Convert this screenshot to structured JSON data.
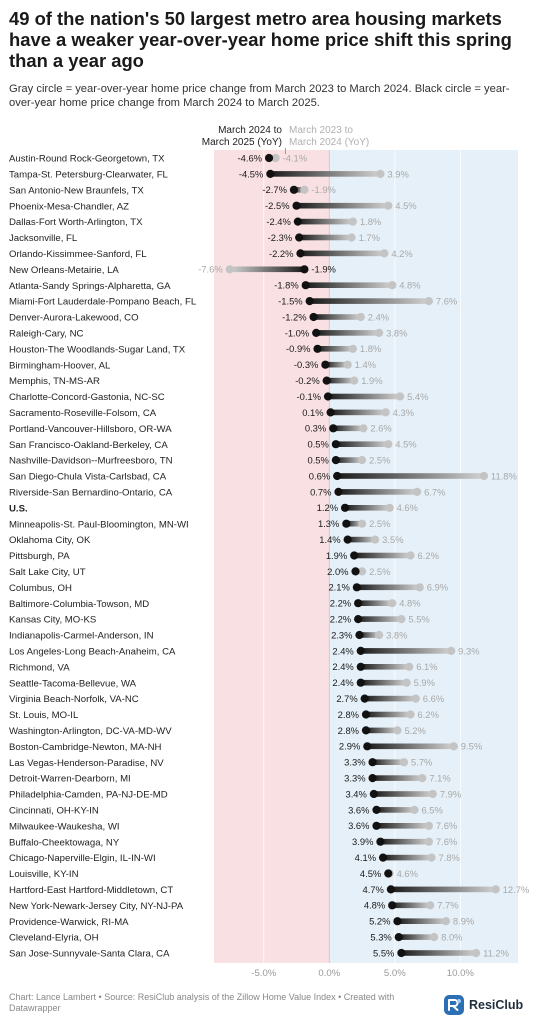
{
  "header": {
    "title": "49 of the nation's 50 largest metro area housing markets have a weaker year-over-year home price shift this spring than a year ago",
    "subtitle": "Gray circle = year-over-year home price change from March 2023 to March 2024. Black circle = year-over-year home price change from March 2024 to March 2025."
  },
  "footer": {
    "source": "Chart: Lance Lambert • Source: ResiClub analysis of the Zillow Home Value Index • Created with Datawrapper",
    "brand": "ResiClub",
    "logo_icon": "resiclub-logo-icon"
  },
  "chart_data": {
    "type": "dot-range",
    "legend": {
      "black_line1": "March 2024 to",
      "black_line2": "March 2025 (YoY)",
      "gray_line1": "March 2023 to",
      "gray_line2": "March 2024 (YoY)"
    },
    "x_ticks": [
      -5,
      0,
      5,
      10
    ],
    "x_tick_labels": [
      "-5.0%",
      "0.0%",
      "5.0%",
      "10.0%"
    ],
    "xlim": [
      -8.8,
      14.4
    ],
    "colors": {
      "negative_bg": "#f8e0e3",
      "positive_bg": "#e5f0f8",
      "black_dot": "#111111",
      "gray_dot": "#c4c4c4",
      "gray_label": "#a8a8a8"
    },
    "series": [
      {
        "name": "March 2024 to March 2025 (YoY)",
        "color": "#111111"
      },
      {
        "name": "March 2023 to March 2024 (YoY)",
        "color": "#c4c4c4"
      }
    ],
    "rows": [
      {
        "label": "Austin-Round Rock-Georgetown, TX",
        "black": -4.6,
        "gray": -4.1,
        "black_label": "-4.6%",
        "gray_label": "-4.1%"
      },
      {
        "label": "Tampa-St. Petersburg-Clearwater, FL",
        "black": -4.5,
        "gray": 3.9,
        "black_label": "-4.5%",
        "gray_label": "3.9%"
      },
      {
        "label": "San Antonio-New Braunfels, TX",
        "black": -2.7,
        "gray": -1.9,
        "black_label": "-2.7%",
        "gray_label": "-1.9%"
      },
      {
        "label": "Phoenix-Mesa-Chandler, AZ",
        "black": -2.5,
        "gray": 4.5,
        "black_label": "-2.5%",
        "gray_label": "4.5%"
      },
      {
        "label": "Dallas-Fort Worth-Arlington, TX",
        "black": -2.4,
        "gray": 1.8,
        "black_label": "-2.4%",
        "gray_label": "1.8%"
      },
      {
        "label": "Jacksonville, FL",
        "black": -2.3,
        "gray": 1.7,
        "black_label": "-2.3%",
        "gray_label": "1.7%"
      },
      {
        "label": "Orlando-Kissimmee-Sanford, FL",
        "black": -2.2,
        "gray": 4.2,
        "black_label": "-2.2%",
        "gray_label": "4.2%"
      },
      {
        "label": "New Orleans-Metairie, LA",
        "black": -1.9,
        "gray": -7.6,
        "black_label": "-1.9%",
        "gray_label": "-7.6%"
      },
      {
        "label": "Atlanta-Sandy Springs-Alpharetta, GA",
        "black": -1.8,
        "gray": 4.8,
        "black_label": "-1.8%",
        "gray_label": "4.8%"
      },
      {
        "label": "Miami-Fort Lauderdale-Pompano Beach, FL",
        "black": -1.5,
        "gray": 7.6,
        "black_label": "-1.5%",
        "gray_label": "7.6%"
      },
      {
        "label": "Denver-Aurora-Lakewood, CO",
        "black": -1.2,
        "gray": 2.4,
        "black_label": "-1.2%",
        "gray_label": "2.4%"
      },
      {
        "label": "Raleigh-Cary, NC",
        "black": -1.0,
        "gray": 3.8,
        "black_label": "-1.0%",
        "gray_label": "3.8%"
      },
      {
        "label": "Houston-The Woodlands-Sugar Land, TX",
        "black": -0.9,
        "gray": 1.8,
        "black_label": "-0.9%",
        "gray_label": "1.8%"
      },
      {
        "label": "Birmingham-Hoover, AL",
        "black": -0.3,
        "gray": 1.4,
        "black_label": "-0.3%",
        "gray_label": "1.4%"
      },
      {
        "label": "Memphis, TN-MS-AR",
        "black": -0.2,
        "gray": 1.9,
        "black_label": "-0.2%",
        "gray_label": "1.9%"
      },
      {
        "label": "Charlotte-Concord-Gastonia, NC-SC",
        "black": -0.1,
        "gray": 5.4,
        "black_label": "-0.1%",
        "gray_label": "5.4%"
      },
      {
        "label": "Sacramento-Roseville-Folsom, CA",
        "black": 0.1,
        "gray": 4.3,
        "black_label": "0.1%",
        "gray_label": "4.3%"
      },
      {
        "label": "Portland-Vancouver-Hillsboro, OR-WA",
        "black": 0.3,
        "gray": 2.6,
        "black_label": "0.3%",
        "gray_label": "2.6%"
      },
      {
        "label": "San Francisco-Oakland-Berkeley, CA",
        "black": 0.5,
        "gray": 4.5,
        "black_label": "0.5%",
        "gray_label": "4.5%"
      },
      {
        "label": "Nashville-Davidson--Murfreesboro, TN",
        "black": 0.5,
        "gray": 2.5,
        "black_label": "0.5%",
        "gray_label": "2.5%"
      },
      {
        "label": "San Diego-Chula Vista-Carlsbad, CA",
        "black": 0.6,
        "gray": 11.8,
        "black_label": "0.6%",
        "gray_label": "11.8%"
      },
      {
        "label": "Riverside-San Bernardino-Ontario, CA",
        "black": 0.7,
        "gray": 6.7,
        "black_label": "0.7%",
        "gray_label": "6.7%"
      },
      {
        "label": "U.S.",
        "black": 1.2,
        "gray": 4.6,
        "black_label": "1.2%",
        "gray_label": "4.6%",
        "bold": true
      },
      {
        "label": "Minneapolis-St. Paul-Bloomington, MN-WI",
        "black": 1.3,
        "gray": 2.5,
        "black_label": "1.3%",
        "gray_label": "2.5%"
      },
      {
        "label": "Oklahoma City, OK",
        "black": 1.4,
        "gray": 3.5,
        "black_label": "1.4%",
        "gray_label": "3.5%"
      },
      {
        "label": "Pittsburgh, PA",
        "black": 1.9,
        "gray": 6.2,
        "black_label": "1.9%",
        "gray_label": "6.2%"
      },
      {
        "label": "Salt Lake City, UT",
        "black": 2.0,
        "gray": 2.5,
        "black_label": "2.0%",
        "gray_label": "2.5%"
      },
      {
        "label": "Columbus, OH",
        "black": 2.1,
        "gray": 6.9,
        "black_label": "2.1%",
        "gray_label": "6.9%"
      },
      {
        "label": "Baltimore-Columbia-Towson, MD",
        "black": 2.2,
        "gray": 4.8,
        "black_label": "2.2%",
        "gray_label": "4.8%"
      },
      {
        "label": "Kansas City, MO-KS",
        "black": 2.2,
        "gray": 5.5,
        "black_label": "2.2%",
        "gray_label": "5.5%"
      },
      {
        "label": "Indianapolis-Carmel-Anderson, IN",
        "black": 2.3,
        "gray": 3.8,
        "black_label": "2.3%",
        "gray_label": "3.8%"
      },
      {
        "label": "Los Angeles-Long Beach-Anaheim, CA",
        "black": 2.4,
        "gray": 9.3,
        "black_label": "2.4%",
        "gray_label": "9.3%"
      },
      {
        "label": "Richmond, VA",
        "black": 2.4,
        "gray": 6.1,
        "black_label": "2.4%",
        "gray_label": "6.1%"
      },
      {
        "label": "Seattle-Tacoma-Bellevue, WA",
        "black": 2.4,
        "gray": 5.9,
        "black_label": "2.4%",
        "gray_label": "5.9%"
      },
      {
        "label": "Virginia Beach-Norfolk, VA-NC",
        "black": 2.7,
        "gray": 6.6,
        "black_label": "2.7%",
        "gray_label": "6.6%"
      },
      {
        "label": "St. Louis, MO-IL",
        "black": 2.8,
        "gray": 6.2,
        "black_label": "2.8%",
        "gray_label": "6.2%"
      },
      {
        "label": "Washington-Arlington, DC-VA-MD-WV",
        "black": 2.8,
        "gray": 5.2,
        "black_label": "2.8%",
        "gray_label": "5.2%"
      },
      {
        "label": "Boston-Cambridge-Newton, MA-NH",
        "black": 2.9,
        "gray": 9.5,
        "black_label": "2.9%",
        "gray_label": "9.5%"
      },
      {
        "label": "Las Vegas-Henderson-Paradise, NV",
        "black": 3.3,
        "gray": 5.7,
        "black_label": "3.3%",
        "gray_label": "5.7%"
      },
      {
        "label": "Detroit-Warren-Dearborn, MI",
        "black": 3.3,
        "gray": 7.1,
        "black_label": "3.3%",
        "gray_label": "7.1%"
      },
      {
        "label": "Philadelphia-Camden, PA-NJ-DE-MD",
        "black": 3.4,
        "gray": 7.9,
        "black_label": "3.4%",
        "gray_label": "7.9%"
      },
      {
        "label": "Cincinnati, OH-KY-IN",
        "black": 3.6,
        "gray": 6.5,
        "black_label": "3.6%",
        "gray_label": "6.5%"
      },
      {
        "label": "Milwaukee-Waukesha, WI",
        "black": 3.6,
        "gray": 7.6,
        "black_label": "3.6%",
        "gray_label": "7.6%"
      },
      {
        "label": "Buffalo-Cheektowaga, NY",
        "black": 3.9,
        "gray": 7.6,
        "black_label": "3.9%",
        "gray_label": "7.6%"
      },
      {
        "label": "Chicago-Naperville-Elgin, IL-IN-WI",
        "black": 4.1,
        "gray": 7.8,
        "black_label": "4.1%",
        "gray_label": "7.8%"
      },
      {
        "label": "Louisville, KY-IN",
        "black": 4.5,
        "gray": 4.6,
        "black_label": "4.5%",
        "gray_label": "4.6%"
      },
      {
        "label": "Hartford-East Hartford-Middletown, CT",
        "black": 4.7,
        "gray": 12.7,
        "black_label": "4.7%",
        "gray_label": "12.7%"
      },
      {
        "label": "New York-Newark-Jersey City, NY-NJ-PA",
        "black": 4.8,
        "gray": 7.7,
        "black_label": "4.8%",
        "gray_label": "7.7%"
      },
      {
        "label": "Providence-Warwick, RI-MA",
        "black": 5.2,
        "gray": 8.9,
        "black_label": "5.2%",
        "gray_label": "8.9%"
      },
      {
        "label": "Cleveland-Elyria, OH",
        "black": 5.3,
        "gray": 8.0,
        "black_label": "5.3%",
        "gray_label": "8.0%"
      },
      {
        "label": "San Jose-Sunnyvale-Santa Clara, CA",
        "black": 5.5,
        "gray": 11.2,
        "black_label": "5.5%",
        "gray_label": "11.2%"
      }
    ]
  }
}
